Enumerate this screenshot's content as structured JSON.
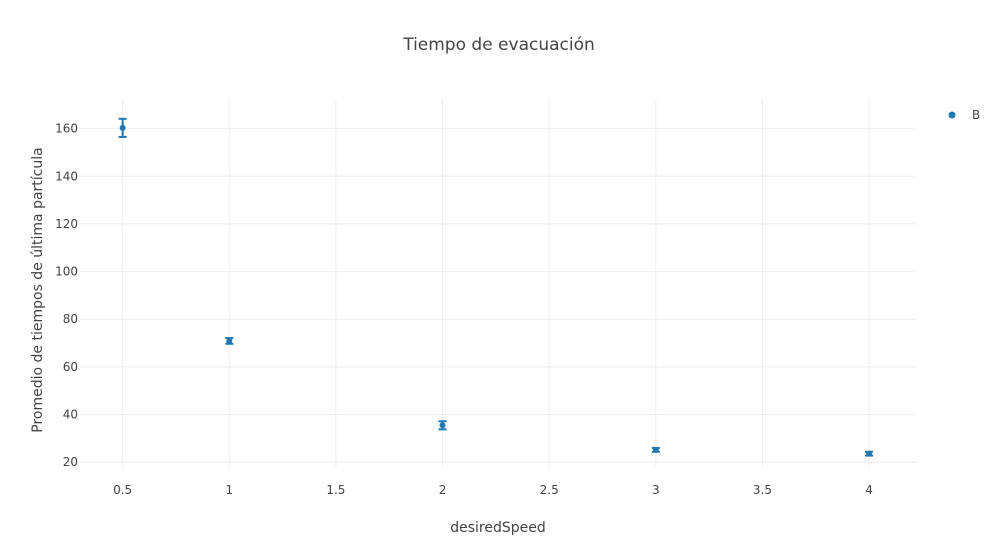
{
  "chart_data": {
    "type": "scatter",
    "title": "Tiempo de evacuación",
    "xlabel": "desiredSpeed",
    "ylabel": "Promedio de tiempos de última partícula",
    "xlim": [
      0.3,
      4.22
    ],
    "ylim": [
      18,
      172
    ],
    "xticks": [
      0.5,
      1,
      1.5,
      2,
      2.5,
      3,
      3.5,
      4
    ],
    "xtick_labels": [
      "0.5",
      "1",
      "1.5",
      "2",
      "2.5",
      "3",
      "3.5",
      "4"
    ],
    "yticks": [
      20,
      40,
      60,
      80,
      100,
      120,
      140,
      160
    ],
    "ytick_labels": [
      "20",
      "40",
      "60",
      "80",
      "100",
      "120",
      "140",
      "160"
    ],
    "grid": true,
    "legend_position": "top-right",
    "color": "#1f77b4",
    "series": [
      {
        "name": "B",
        "x": [
          0.5,
          1,
          2,
          3,
          4
        ],
        "y": [
          160.3,
          70.9,
          35.5,
          25.2,
          23.6
        ],
        "error": [
          3.8,
          1.2,
          1.7,
          0.8,
          0.8
        ]
      }
    ]
  }
}
